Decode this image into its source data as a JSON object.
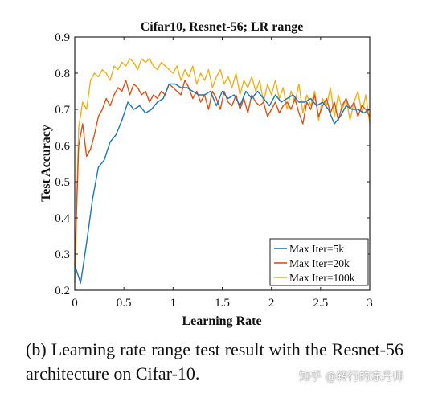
{
  "chart_data": {
    "type": "line",
    "title": "Cifar10, Resnet-56; LR range",
    "xlabel": "Learning Rate",
    "ylabel": "Test Accuracy",
    "xlim": [
      0,
      3
    ],
    "ylim": [
      0.2,
      0.9
    ],
    "xticks": [
      "0",
      "0.5",
      "1",
      "1.5",
      "2",
      "2.5",
      "3"
    ],
    "yticks": [
      "0.2",
      "0.3",
      "0.4",
      "0.5",
      "0.6",
      "0.7",
      "0.8",
      "0.9"
    ],
    "legend_position": "bottom-right",
    "series": [
      {
        "name": "Max Iter=5k",
        "color": "#1f77b4",
        "x": [
          0.0,
          0.06,
          0.12,
          0.18,
          0.24,
          0.3,
          0.36,
          0.42,
          0.48,
          0.54,
          0.6,
          0.66,
          0.72,
          0.78,
          0.84,
          0.9,
          0.96,
          1.02,
          1.08,
          1.14,
          1.2,
          1.26,
          1.32,
          1.38,
          1.44,
          1.5,
          1.56,
          1.62,
          1.68,
          1.74,
          1.8,
          1.86,
          1.92,
          1.98,
          2.04,
          2.1,
          2.16,
          2.22,
          2.28,
          2.34,
          2.4,
          2.46,
          2.52,
          2.58,
          2.64,
          2.7,
          2.76,
          2.82,
          2.88,
          2.94,
          3.0
        ],
        "y": [
          0.27,
          0.22,
          0.33,
          0.45,
          0.54,
          0.56,
          0.61,
          0.63,
          0.67,
          0.72,
          0.7,
          0.71,
          0.69,
          0.7,
          0.72,
          0.73,
          0.77,
          0.77,
          0.76,
          0.76,
          0.75,
          0.74,
          0.74,
          0.75,
          0.71,
          0.75,
          0.73,
          0.74,
          0.71,
          0.75,
          0.73,
          0.75,
          0.73,
          0.71,
          0.74,
          0.72,
          0.73,
          0.74,
          0.72,
          0.72,
          0.73,
          0.71,
          0.72,
          0.7,
          0.66,
          0.68,
          0.71,
          0.7,
          0.7,
          0.69,
          0.7
        ]
      },
      {
        "name": "Max Iter=20k",
        "color": "#d95319",
        "x": [
          0.0,
          0.04,
          0.08,
          0.12,
          0.16,
          0.2,
          0.24,
          0.28,
          0.32,
          0.36,
          0.4,
          0.44,
          0.48,
          0.52,
          0.56,
          0.6,
          0.64,
          0.68,
          0.72,
          0.76,
          0.8,
          0.84,
          0.88,
          0.92,
          0.96,
          1.0,
          1.04,
          1.08,
          1.12,
          1.16,
          1.2,
          1.24,
          1.28,
          1.32,
          1.36,
          1.4,
          1.44,
          1.48,
          1.52,
          1.56,
          1.6,
          1.64,
          1.68,
          1.72,
          1.76,
          1.8,
          1.84,
          1.88,
          1.92,
          1.96,
          2.0,
          2.04,
          2.08,
          2.12,
          2.16,
          2.2,
          2.24,
          2.28,
          2.32,
          2.36,
          2.4,
          2.44,
          2.48,
          2.52,
          2.56,
          2.6,
          2.64,
          2.68,
          2.72,
          2.76,
          2.8,
          2.84,
          2.88,
          2.92,
          2.96,
          3.0
        ],
        "y": [
          0.27,
          0.6,
          0.66,
          0.57,
          0.59,
          0.63,
          0.68,
          0.7,
          0.73,
          0.71,
          0.74,
          0.76,
          0.75,
          0.78,
          0.74,
          0.77,
          0.76,
          0.74,
          0.75,
          0.72,
          0.74,
          0.73,
          0.75,
          0.74,
          0.77,
          0.76,
          0.75,
          0.74,
          0.78,
          0.76,
          0.73,
          0.75,
          0.72,
          0.74,
          0.7,
          0.75,
          0.73,
          0.7,
          0.75,
          0.72,
          0.71,
          0.74,
          0.7,
          0.73,
          0.69,
          0.74,
          0.72,
          0.71,
          0.72,
          0.68,
          0.7,
          0.72,
          0.69,
          0.71,
          0.72,
          0.7,
          0.73,
          0.69,
          0.66,
          0.72,
          0.7,
          0.74,
          0.68,
          0.71,
          0.73,
          0.69,
          0.72,
          0.67,
          0.71,
          0.73,
          0.7,
          0.72,
          0.68,
          0.71,
          0.7,
          0.68
        ]
      },
      {
        "name": "Max Iter=100k",
        "color": "#edb120",
        "x": [
          0.0,
          0.04,
          0.08,
          0.12,
          0.16,
          0.2,
          0.24,
          0.28,
          0.32,
          0.36,
          0.4,
          0.44,
          0.48,
          0.52,
          0.56,
          0.6,
          0.64,
          0.68,
          0.72,
          0.76,
          0.8,
          0.84,
          0.88,
          0.92,
          0.96,
          1.0,
          1.04,
          1.08,
          1.12,
          1.16,
          1.2,
          1.24,
          1.28,
          1.32,
          1.36,
          1.4,
          1.44,
          1.48,
          1.52,
          1.56,
          1.6,
          1.64,
          1.68,
          1.72,
          1.76,
          1.8,
          1.84,
          1.88,
          1.92,
          1.96,
          2.0,
          2.04,
          2.08,
          2.12,
          2.16,
          2.2,
          2.24,
          2.28,
          2.32,
          2.36,
          2.4,
          2.44,
          2.48,
          2.52,
          2.56,
          2.6,
          2.64,
          2.68,
          2.72,
          2.76,
          2.8,
          2.84,
          2.88,
          2.92,
          2.96,
          3.0
        ],
        "y": [
          0.22,
          0.65,
          0.72,
          0.7,
          0.78,
          0.8,
          0.79,
          0.81,
          0.8,
          0.78,
          0.82,
          0.81,
          0.83,
          0.82,
          0.84,
          0.83,
          0.81,
          0.84,
          0.83,
          0.84,
          0.82,
          0.81,
          0.83,
          0.82,
          0.81,
          0.8,
          0.82,
          0.78,
          0.81,
          0.79,
          0.82,
          0.77,
          0.8,
          0.78,
          0.81,
          0.76,
          0.79,
          0.81,
          0.77,
          0.79,
          0.76,
          0.8,
          0.74,
          0.78,
          0.76,
          0.79,
          0.75,
          0.78,
          0.72,
          0.77,
          0.74,
          0.78,
          0.73,
          0.76,
          0.7,
          0.75,
          0.72,
          0.77,
          0.69,
          0.74,
          0.71,
          0.75,
          0.67,
          0.73,
          0.71,
          0.76,
          0.68,
          0.74,
          0.7,
          0.73,
          0.67,
          0.72,
          0.75,
          0.69,
          0.74,
          0.66
        ]
      }
    ]
  },
  "caption": "(b) Learning rate range test result with the Resnet-56 architecture on Cifar-10.",
  "watermark": "知乎 @转行的冻丹师"
}
